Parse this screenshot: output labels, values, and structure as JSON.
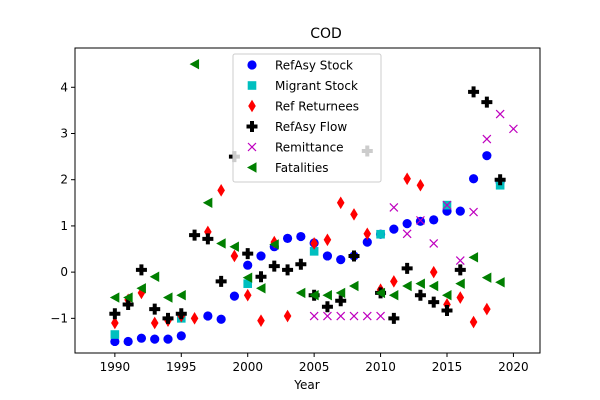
{
  "chart_data": {
    "type": "scatter",
    "title": "COD",
    "xlabel": "Year",
    "ylabel": "",
    "xlim": [
      1987,
      2022
    ],
    "ylim": [
      -1.75,
      4.85
    ],
    "xticks": [
      1990,
      1995,
      2000,
      2005,
      2010,
      2015,
      2020
    ],
    "yticks": [
      -1,
      0,
      1,
      2,
      3,
      4
    ],
    "grid": false,
    "legend_placement": "upper center",
    "series": [
      {
        "name": "RefAsy Stock",
        "marker": "circle",
        "color": "#0000ff",
        "points": [
          [
            1990,
            -1.5
          ],
          [
            1991,
            -1.5
          ],
          [
            1992,
            -1.43
          ],
          [
            1993,
            -1.45
          ],
          [
            1994,
            -1.45
          ],
          [
            1995,
            -1.38
          ],
          [
            1997,
            -0.95
          ],
          [
            1998,
            -1.02
          ],
          [
            1999,
            -0.52
          ],
          [
            2000,
            0.15
          ],
          [
            2001,
            0.35
          ],
          [
            2002,
            0.55
          ],
          [
            2003,
            0.73
          ],
          [
            2004,
            0.77
          ],
          [
            2005,
            0.63
          ],
          [
            2006,
            0.35
          ],
          [
            2007,
            0.27
          ],
          [
            2008,
            0.35
          ],
          [
            2009,
            0.65
          ],
          [
            2010,
            0.82
          ],
          [
            2011,
            0.93
          ],
          [
            2012,
            1.05
          ],
          [
            2013,
            1.1
          ],
          [
            2014,
            1.13
          ],
          [
            2015,
            1.32
          ],
          [
            2016,
            1.32
          ],
          [
            2017,
            2.02
          ],
          [
            2018,
            2.52
          ],
          [
            2019,
            1.95
          ]
        ]
      },
      {
        "name": "Migrant Stock",
        "marker": "square",
        "color": "#00bfbf",
        "points": [
          [
            1990,
            -1.35
          ],
          [
            1995,
            -1.0
          ],
          [
            2000,
            -0.25
          ],
          [
            2005,
            0.45
          ],
          [
            2010,
            0.82
          ],
          [
            2015,
            1.45
          ],
          [
            2019,
            1.88
          ]
        ]
      },
      {
        "name": "Ref Returnees",
        "marker": "diamond",
        "color": "#ff0000",
        "points": [
          [
            1990,
            -1.1
          ],
          [
            1991,
            -0.6
          ],
          [
            1992,
            -0.45
          ],
          [
            1993,
            -1.1
          ],
          [
            1994,
            -1.05
          ],
          [
            1995,
            -0.95
          ],
          [
            1996,
            -1.0
          ],
          [
            1997,
            0.87
          ],
          [
            1998,
            1.77
          ],
          [
            1999,
            0.35
          ],
          [
            2000,
            -0.5
          ],
          [
            2001,
            -1.05
          ],
          [
            2002,
            0.65
          ],
          [
            2003,
            -0.95
          ],
          [
            2005,
            0.62
          ],
          [
            2006,
            0.7
          ],
          [
            2007,
            1.5
          ],
          [
            2008,
            1.25
          ],
          [
            2009,
            0.83
          ],
          [
            2010,
            -0.38
          ],
          [
            2011,
            -0.2
          ],
          [
            2012,
            2.02
          ],
          [
            2013,
            1.88
          ],
          [
            2014,
            0.0
          ],
          [
            2015,
            -0.7
          ],
          [
            2016,
            -0.55
          ],
          [
            2017,
            -1.08
          ],
          [
            2018,
            -0.8
          ]
        ]
      },
      {
        "name": "RefAsy Flow",
        "marker": "plus",
        "color": "#000000",
        "points": [
          [
            1990,
            -0.9
          ],
          [
            1991,
            -0.7
          ],
          [
            1992,
            0.05
          ],
          [
            1993,
            -0.8
          ],
          [
            1994,
            -1.0
          ],
          [
            1995,
            -0.9
          ],
          [
            1996,
            0.8
          ],
          [
            1997,
            0.72
          ],
          [
            1998,
            -0.2
          ],
          [
            1999,
            2.5
          ],
          [
            2000,
            0.4
          ],
          [
            2001,
            -0.1
          ],
          [
            2002,
            0.13
          ],
          [
            2003,
            0.05
          ],
          [
            2004,
            0.17
          ],
          [
            2005,
            -0.5
          ],
          [
            2006,
            -0.75
          ],
          [
            2007,
            -0.62
          ],
          [
            2008,
            0.35
          ],
          [
            2009,
            2.62
          ],
          [
            2010,
            -0.45
          ],
          [
            2011,
            -1.0
          ],
          [
            2012,
            0.08
          ],
          [
            2013,
            -0.5
          ],
          [
            2014,
            -0.65
          ],
          [
            2015,
            -0.83
          ],
          [
            2016,
            0.05
          ],
          [
            2017,
            3.9
          ],
          [
            2018,
            3.68
          ],
          [
            2019,
            2.0
          ]
        ]
      },
      {
        "name": "Remittance",
        "marker": "x",
        "color": "#bf00bf",
        "points": [
          [
            2005,
            -0.95
          ],
          [
            2006,
            -0.95
          ],
          [
            2007,
            -0.95
          ],
          [
            2008,
            -0.95
          ],
          [
            2009,
            -0.95
          ],
          [
            2010,
            -0.95
          ],
          [
            2011,
            1.4
          ],
          [
            2012,
            0.83
          ],
          [
            2013,
            1.12
          ],
          [
            2014,
            0.62
          ],
          [
            2015,
            1.45
          ],
          [
            2016,
            0.25
          ],
          [
            2017,
            1.3
          ],
          [
            2018,
            2.88
          ],
          [
            2019,
            3.42
          ],
          [
            2020,
            3.1
          ]
        ]
      },
      {
        "name": "Fatalities",
        "marker": "triangle-left",
        "color": "#007f00",
        "points": [
          [
            1990,
            -0.55
          ],
          [
            1991,
            -0.55
          ],
          [
            1992,
            -0.35
          ],
          [
            1993,
            -0.1
          ],
          [
            1994,
            -0.55
          ],
          [
            1995,
            -0.5
          ],
          [
            1996,
            4.5
          ],
          [
            1997,
            1.5
          ],
          [
            1998,
            0.62
          ],
          [
            1999,
            0.55
          ],
          [
            2000,
            -0.12
          ],
          [
            2001,
            -0.35
          ],
          [
            2002,
            0.6
          ],
          [
            2004,
            -0.45
          ],
          [
            2005,
            -0.5
          ],
          [
            2006,
            -0.5
          ],
          [
            2007,
            -0.45
          ],
          [
            2008,
            -0.3
          ],
          [
            2010,
            -0.45
          ],
          [
            2011,
            -0.5
          ],
          [
            2012,
            -0.3
          ],
          [
            2013,
            -0.25
          ],
          [
            2014,
            -0.3
          ],
          [
            2015,
            -0.5
          ],
          [
            2016,
            -0.25
          ],
          [
            2017,
            0.32
          ],
          [
            2018,
            -0.12
          ],
          [
            2019,
            -0.22
          ]
        ]
      }
    ]
  }
}
